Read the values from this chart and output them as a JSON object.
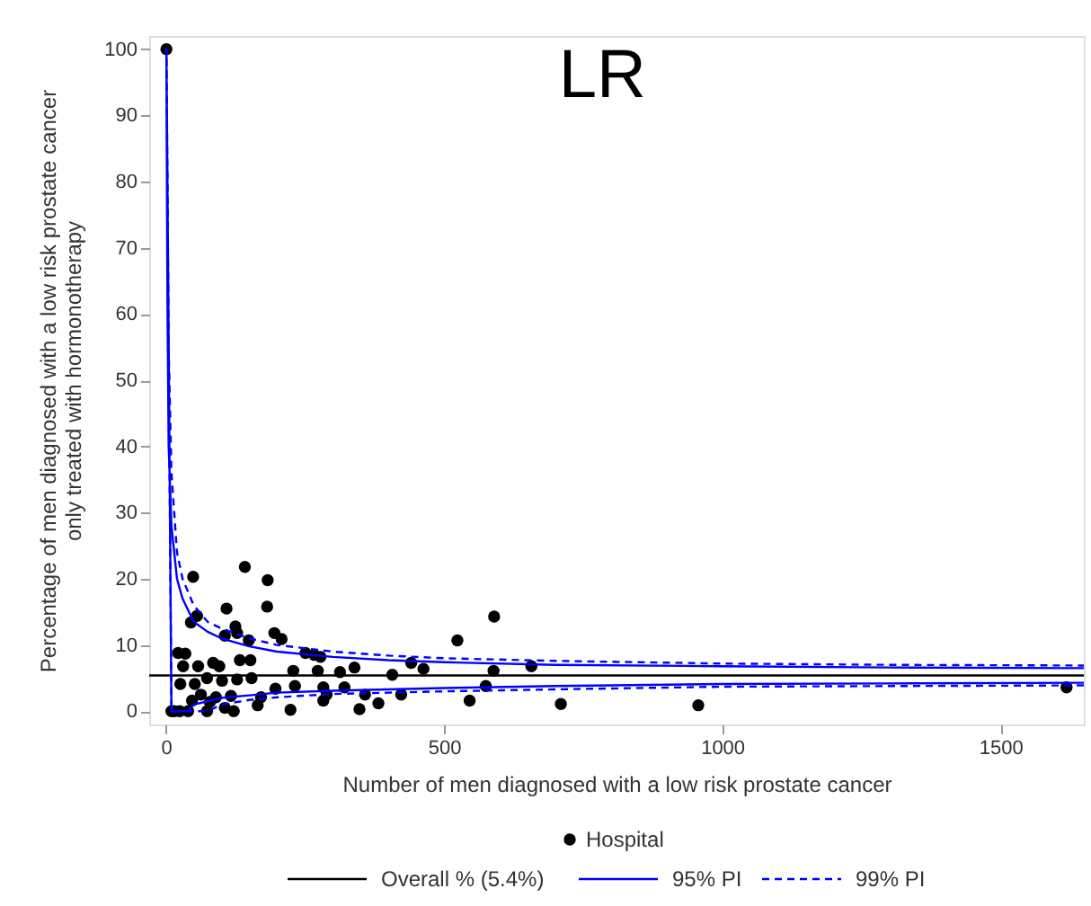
{
  "chart_data": {
    "type": "scatter",
    "title": "LR",
    "xlabel": "Number of men diagnosed with a low risk prostate cancer",
    "ylabel": "Percentage of men diagnosed with a low risk prostate cancer\nonly treated with hormonotherapy",
    "xlim": [
      -30,
      1650
    ],
    "ylim": [
      -2,
      102
    ],
    "xticks": [
      0,
      500,
      1000,
      1500
    ],
    "yticks": [
      0,
      10,
      20,
      30,
      40,
      50,
      60,
      70,
      80,
      90,
      100
    ],
    "grid": false,
    "legend": "bottom",
    "series": [
      {
        "name": "Hospital",
        "marker": "circle",
        "color": "#000000",
        "x": [
          1,
          49,
          142,
          183,
          182,
          109,
          125,
          56,
          45,
          106,
          195,
          208,
          149,
          128,
          524,
          590,
          251,
          267,
          278,
          22,
          35,
          31,
          58,
          85,
          96,
          133,
          152,
          229,
          273,
          313,
          339,
          407,
          441,
          463,
          589,
          657,
          26,
          52,
          74,
          101,
          128,
          154,
          197,
          232,
          283,
          321,
          63,
          90,
          117,
          171,
          289,
          358,
          382,
          423,
          348,
          224,
          575,
          546,
          710,
          957,
          1619,
          10,
          15,
          25,
          40,
          74,
          122,
          283,
          165,
          79,
          106,
          47
        ],
        "values": [
          100,
          20.3,
          21.8,
          19.8,
          15.8,
          15.5,
          12.8,
          14.4,
          13.4,
          11.4,
          11.8,
          10.9,
          10.7,
          11.8,
          10.7,
          14.3,
          8.8,
          8.5,
          8.2,
          8.8,
          8.7,
          6.8,
          6.8,
          7.3,
          6.8,
          7.7,
          7.7,
          6.1,
          6.1,
          5.9,
          6.6,
          5.5,
          7.3,
          6.4,
          6.1,
          6.8,
          4.1,
          4.1,
          5.0,
          4.6,
          4.8,
          5.0,
          3.4,
          3.8,
          3.6,
          3.6,
          2.5,
          2.1,
          2.3,
          2.1,
          2.5,
          2.5,
          1.2,
          2.5,
          0.3,
          0.2,
          3.8,
          1.6,
          1.1,
          0.9,
          3.6,
          0,
          0,
          0,
          0,
          0,
          0,
          1.6,
          0.9,
          1.4,
          0.5,
          1.6
        ]
      },
      {
        "name": "Overall % (5.4%)",
        "type": "line",
        "color": "#000000",
        "line_style": "solid",
        "x": [
          -30,
          1650
        ],
        "values": [
          5.4,
          5.4
        ]
      },
      {
        "name": "95% PI",
        "type": "line",
        "color": "#0000ff",
        "line_style": "solid",
        "x": [
          1650,
          1300,
          1000,
          700,
          500,
          400,
          300,
          200,
          150,
          100,
          75,
          50,
          40,
          10,
          1,
          2,
          3,
          5,
          10,
          20,
          30,
          50,
          75,
          100,
          150,
          200,
          300,
          400,
          500,
          700,
          1000,
          1300,
          1650
        ],
        "values": [
          4.3,
          4.2,
          4.1,
          3.8,
          3.5,
          3.3,
          3.1,
          2.8,
          2.4,
          2,
          1.5,
          1,
          0,
          0,
          100,
          77,
          60,
          40,
          28,
          20,
          17,
          13.5,
          12,
          11,
          9.8,
          9,
          8.2,
          7.7,
          7.4,
          7.0,
          6.8,
          6.6,
          6.5
        ]
      },
      {
        "name": "99% PI",
        "type": "line",
        "color": "#0000ff",
        "line_style": "dashed",
        "x": [
          1650,
          1300,
          1000,
          700,
          500,
          400,
          300,
          200,
          150,
          100,
          75,
          40,
          10,
          1,
          2,
          3,
          5,
          10,
          20,
          30,
          50,
          75,
          100,
          150,
          200,
          300,
          400,
          500,
          700,
          1000,
          1300,
          1650
        ],
        "values": [
          3.9,
          3.8,
          3.7,
          3.3,
          3.0,
          2.8,
          2.6,
          2.1,
          1.7,
          1,
          0,
          0,
          0,
          100,
          90,
          75,
          55,
          36,
          24,
          20,
          16,
          13.5,
          12.5,
          11,
          10,
          9,
          8.4,
          8.0,
          7.6,
          7.2,
          7.0,
          6.9
        ]
      }
    ]
  }
}
